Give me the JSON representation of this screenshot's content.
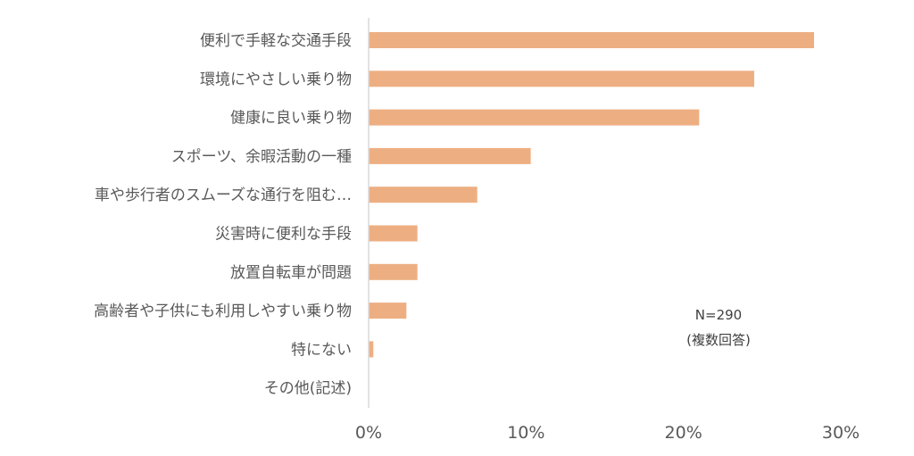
{
  "chart_data": {
    "type": "bar",
    "orientation": "horizontal",
    "categories": [
      "便利で手軽な交通手段",
      "環境にやさしい乗り物",
      "健康に良い乗り物",
      "スポーツ、余暇活動の一種",
      "車や歩行者のスムーズな通行を阻む…",
      "災害時に便利な手段",
      "放置自転車が問題",
      "高齢者や子供にも利用しやすい乗り物",
      "特にない",
      "その他(記述)"
    ],
    "values": [
      28.3,
      24.5,
      21.0,
      10.3,
      6.9,
      3.1,
      3.1,
      2.4,
      0.3,
      0.0
    ],
    "xlim": [
      0,
      30
    ],
    "xticks": [
      "0%",
      "10%",
      "20%",
      "30%"
    ],
    "bar_color": "#EDAF82",
    "axis_color": "#D9D9D9",
    "annotations": [
      "N=290",
      "(複数回答)"
    ]
  }
}
